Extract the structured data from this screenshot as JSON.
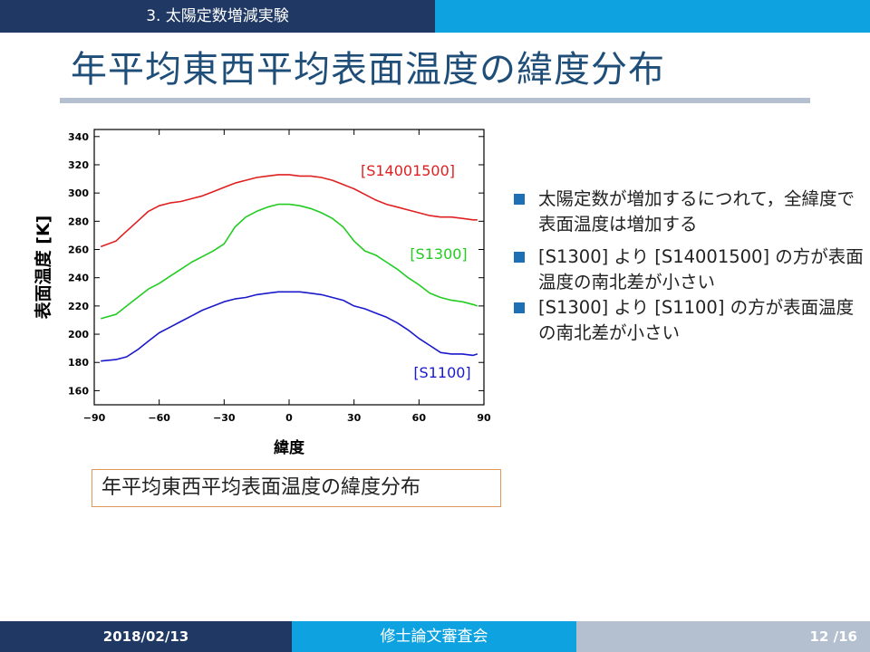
{
  "header": {
    "section": "3. 太陽定数増減実験"
  },
  "slide": {
    "title": "年平均東西平均表面温度の緯度分布"
  },
  "caption": "年平均東西平均表面温度の緯度分布",
  "bullets": [
    "太陽定数が増加するにつれて，全緯度で表面温度は増加する",
    "[S1300] より [S14001500] の方が表面温度の南北差が小さい",
    "[S1300] より [S1100] の方が表面温度の南北差が小さい"
  ],
  "footer": {
    "date": "2018/02/13",
    "event": "修士論文審査会",
    "page": "12 /16"
  },
  "colors": {
    "navy": "#1f3864",
    "cyan": "#0ea3e0",
    "gray": "#b4bfcf",
    "title": "#1f4e79",
    "bullet": "#1f6fb5"
  },
  "chart_data": {
    "type": "line",
    "xlabel": "緯度",
    "ylabel": "表面温度 [K]",
    "xlim": [
      -90,
      90
    ],
    "ylim": [
      150,
      345
    ],
    "xticks": [
      -90,
      -60,
      -30,
      0,
      30,
      60,
      90
    ],
    "xtick_labels": [
      "−90",
      "−60",
      "−30",
      "0",
      "30",
      "60",
      "90"
    ],
    "yticks": [
      160,
      180,
      200,
      220,
      240,
      260,
      280,
      300,
      320,
      340
    ],
    "grid": false,
    "legend": "inline labels",
    "x": [
      -87,
      -80,
      -75,
      -70,
      -65,
      -60,
      -55,
      -50,
      -45,
      -40,
      -35,
      -30,
      -25,
      -20,
      -15,
      -10,
      -5,
      0,
      5,
      10,
      15,
      20,
      25,
      30,
      35,
      40,
      45,
      50,
      55,
      60,
      65,
      70,
      75,
      80,
      85,
      87
    ],
    "series": [
      {
        "name": "[S14001500]",
        "color": "#e02020",
        "values": [
          262,
          266,
          273,
          280,
          287,
          291,
          293,
          294,
          296,
          298,
          301,
          304,
          307,
          309,
          311,
          312,
          313,
          313,
          312,
          312,
          311,
          309,
          306,
          303,
          299,
          295,
          292,
          290,
          288,
          286,
          284,
          283,
          283,
          282,
          281,
          281
        ]
      },
      {
        "name": "[S1300]",
        "color": "#22cc22",
        "values": [
          211,
          214,
          220,
          226,
          232,
          236,
          241,
          246,
          251,
          255,
          259,
          264,
          276,
          283,
          287,
          290,
          292,
          292,
          291,
          289,
          286,
          282,
          276,
          266,
          259,
          256,
          251,
          246,
          240,
          235,
          229,
          226,
          224,
          223,
          221,
          220
        ]
      },
      {
        "name": "[S1100]",
        "color": "#1a1acc",
        "values": [
          181,
          182,
          184,
          189,
          195,
          201,
          205,
          209,
          213,
          217,
          220,
          223,
          225,
          226,
          228,
          229,
          230,
          230,
          230,
          229,
          228,
          226,
          224,
          220,
          218,
          215,
          212,
          208,
          203,
          197,
          192,
          187,
          186,
          186,
          185,
          186
        ]
      }
    ]
  }
}
